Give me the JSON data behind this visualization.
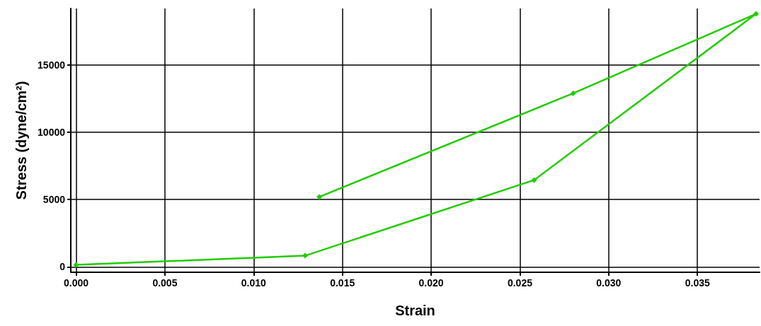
{
  "chart_data": {
    "type": "line",
    "xlabel": "Strain",
    "ylabel": "Stress (dyne/cm²)",
    "x": [
      0,
      0.0129,
      0.0258,
      0.0383,
      0.028,
      0.0137
    ],
    "series": [
      {
        "color": "#22cc00",
        "values": [
          150,
          830,
          6450,
          18800,
          12900,
          5200
        ]
      }
    ],
    "xlim": [
      -0.0003,
      0.0385
    ],
    "xticks": [
      {
        "value": 0,
        "label": "0.000"
      },
      {
        "value": 0.005,
        "label": "0.005"
      },
      {
        "value": 0.01,
        "label": "0.010"
      },
      {
        "value": 0.015,
        "label": "0.015"
      },
      {
        "value": 0.02,
        "label": "0.020"
      },
      {
        "value": 0.025,
        "label": "0.025"
      },
      {
        "value": 0.03,
        "label": "0.030"
      },
      {
        "value": 0.035,
        "label": "0.035"
      }
    ],
    "ylim": [
      -400,
      19200
    ],
    "yticks": [
      0,
      5000,
      10000,
      15000
    ],
    "grid": true,
    "marker": "diamond",
    "line_style": "solid"
  }
}
